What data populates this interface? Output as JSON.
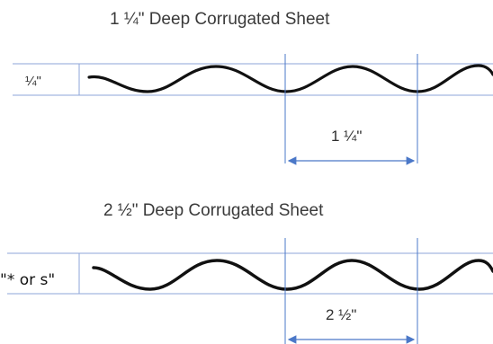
{
  "top": {
    "title": "1 ¼\" Deep Corrugated Sheet",
    "depth_label": "¼\"",
    "pitch_label": "1 ¼\""
  },
  "bottom": {
    "title": "2 ½\" Deep Corrugated Sheet",
    "depth_label": "\"* or s\"",
    "pitch_label": "2 ½\""
  },
  "colors": {
    "wave": "#111111",
    "guide": "#8ea6d8",
    "dimension": "#4b78c8",
    "text": "#333333"
  }
}
